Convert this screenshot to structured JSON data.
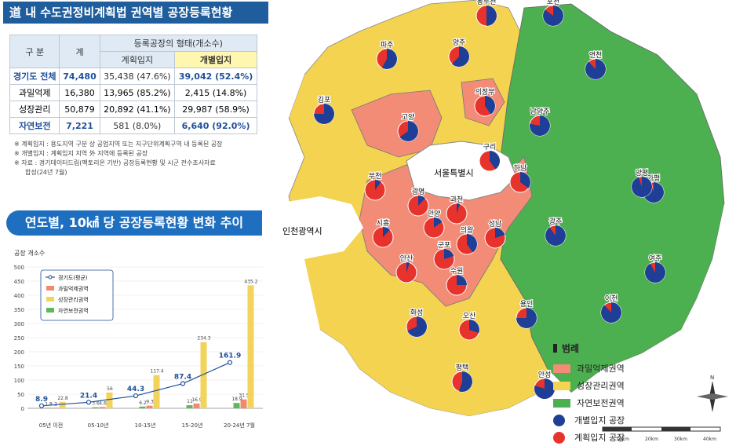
{
  "header": {
    "title": "道 내 수도권정비계획법 권역별 공장등록현황"
  },
  "table": {
    "col_group": "구 분",
    "col_total": "계",
    "col_type": "등록공장의 형태(개소수)",
    "col_planned": "계획입지",
    "col_individual": "개별입지",
    "rows": [
      {
        "label": "경기도 전체",
        "total": "74,480",
        "planned": "35,438 (47.6%)",
        "individual": "39,042 (52.4%)"
      },
      {
        "label": "과밀억제",
        "total": "16,380",
        "planned": "13,965 (85.2%)",
        "individual": "2,415 (14.8%)"
      },
      {
        "label": "성장관리",
        "total": "50,879",
        "planned": "20,892 (41.1%)",
        "individual": "29,987 (58.9%)"
      },
      {
        "label": "자연보전",
        "total": "7,221",
        "planned": "581 (8.0%)",
        "individual": "6,640 (92.0%)"
      }
    ]
  },
  "notes": [
    "※ 계획입지 : 용도지역 구분 상 공업지역 또는 지구단위계획구역 내 등록된 공장",
    "※ 개별입지 : 계획입지 지역 外 지역에 등록된 공장",
    "※ 자료 : 경기데이터드림(팩토리온 기반) 공장등록현황 및 시군 전수조사자료",
    "합성(24년 7월)"
  ],
  "section2": {
    "title": "연도별, 10㎢ 당 공장등록현황 변화 추이"
  },
  "chart_data": {
    "type": "bar",
    "ylabel": "공장 개소수",
    "ylim": [
      0,
      500
    ],
    "yticks": [
      0,
      50,
      100,
      150,
      200,
      250,
      300,
      350,
      400,
      450,
      500
    ],
    "categories": [
      "05년 이전",
      "05-10년",
      "10-15년",
      "15-20년",
      "20-24년 7월"
    ],
    "series": [
      {
        "name": "과밀억제권역",
        "color": "#f08a6f",
        "values": [
          2.0,
          4.6,
          9.3,
          16.9,
          31.5
        ]
      },
      {
        "name": "성장관리권역",
        "color": "#f2d35c",
        "values": [
          22.8,
          56.0,
          117.4,
          234.3,
          435.2
        ]
      },
      {
        "name": "자연보전권역",
        "color": "#5cb85c",
        "values": [
          1.8,
          3.6,
          6.2,
          11.0,
          18.9
        ]
      }
    ],
    "line": {
      "name": "경기도(평균)",
      "color": "#1f4f9a",
      "values": [
        8.9,
        21.4,
        44.3,
        87.4,
        161.9
      ]
    }
  },
  "map": {
    "seoul": "서울특별시",
    "incheon": "인천광역시",
    "legend_title": "범례",
    "legend": [
      {
        "label": "과밀억제권역",
        "color": "#f28c77"
      },
      {
        "label": "성장관리권역",
        "color": "#f3d34f"
      },
      {
        "label": "자연보전권역",
        "color": "#4caf50"
      }
    ],
    "dot_legend": [
      {
        "label": "개별입지 공장",
        "color": "#1f3e96"
      },
      {
        "label": "계획입지 공장",
        "color": "#e8322c"
      }
    ],
    "scale": [
      "10km",
      "20km",
      "30km",
      "40km"
    ],
    "cities": [
      {
        "name": "파주",
        "blue": 58
      },
      {
        "name": "양주",
        "blue": 62
      },
      {
        "name": "동두천",
        "blue": 50
      },
      {
        "name": "포천",
        "blue": 85
      },
      {
        "name": "연천",
        "blue": 88
      },
      {
        "name": "가평",
        "blue": 95
      },
      {
        "name": "김포",
        "blue": 75
      },
      {
        "name": "고양",
        "blue": 65
      },
      {
        "name": "의정부",
        "blue": 40
      },
      {
        "name": "남양주",
        "blue": 78
      },
      {
        "name": "양평",
        "blue": 95
      },
      {
        "name": "부천",
        "blue": 10
      },
      {
        "name": "광명",
        "blue": 12
      },
      {
        "name": "과천",
        "blue": 5
      },
      {
        "name": "구리",
        "blue": 40
      },
      {
        "name": "하남",
        "blue": 35
      },
      {
        "name": "시흥",
        "blue": 12
      },
      {
        "name": "안양",
        "blue": 15
      },
      {
        "name": "성남",
        "blue": 20
      },
      {
        "name": "군포",
        "blue": 20
      },
      {
        "name": "의왕",
        "blue": 40
      },
      {
        "name": "광주",
        "blue": 90
      },
      {
        "name": "안산",
        "blue": 5
      },
      {
        "name": "수원",
        "blue": 25
      },
      {
        "name": "용인",
        "blue": 75
      },
      {
        "name": "이천",
        "blue": 88
      },
      {
        "name": "여주",
        "blue": 92
      },
      {
        "name": "화성",
        "blue": 68
      },
      {
        "name": "오산",
        "blue": 30
      },
      {
        "name": "평택",
        "blue": 55
      },
      {
        "name": "안성",
        "blue": 80
      }
    ]
  }
}
